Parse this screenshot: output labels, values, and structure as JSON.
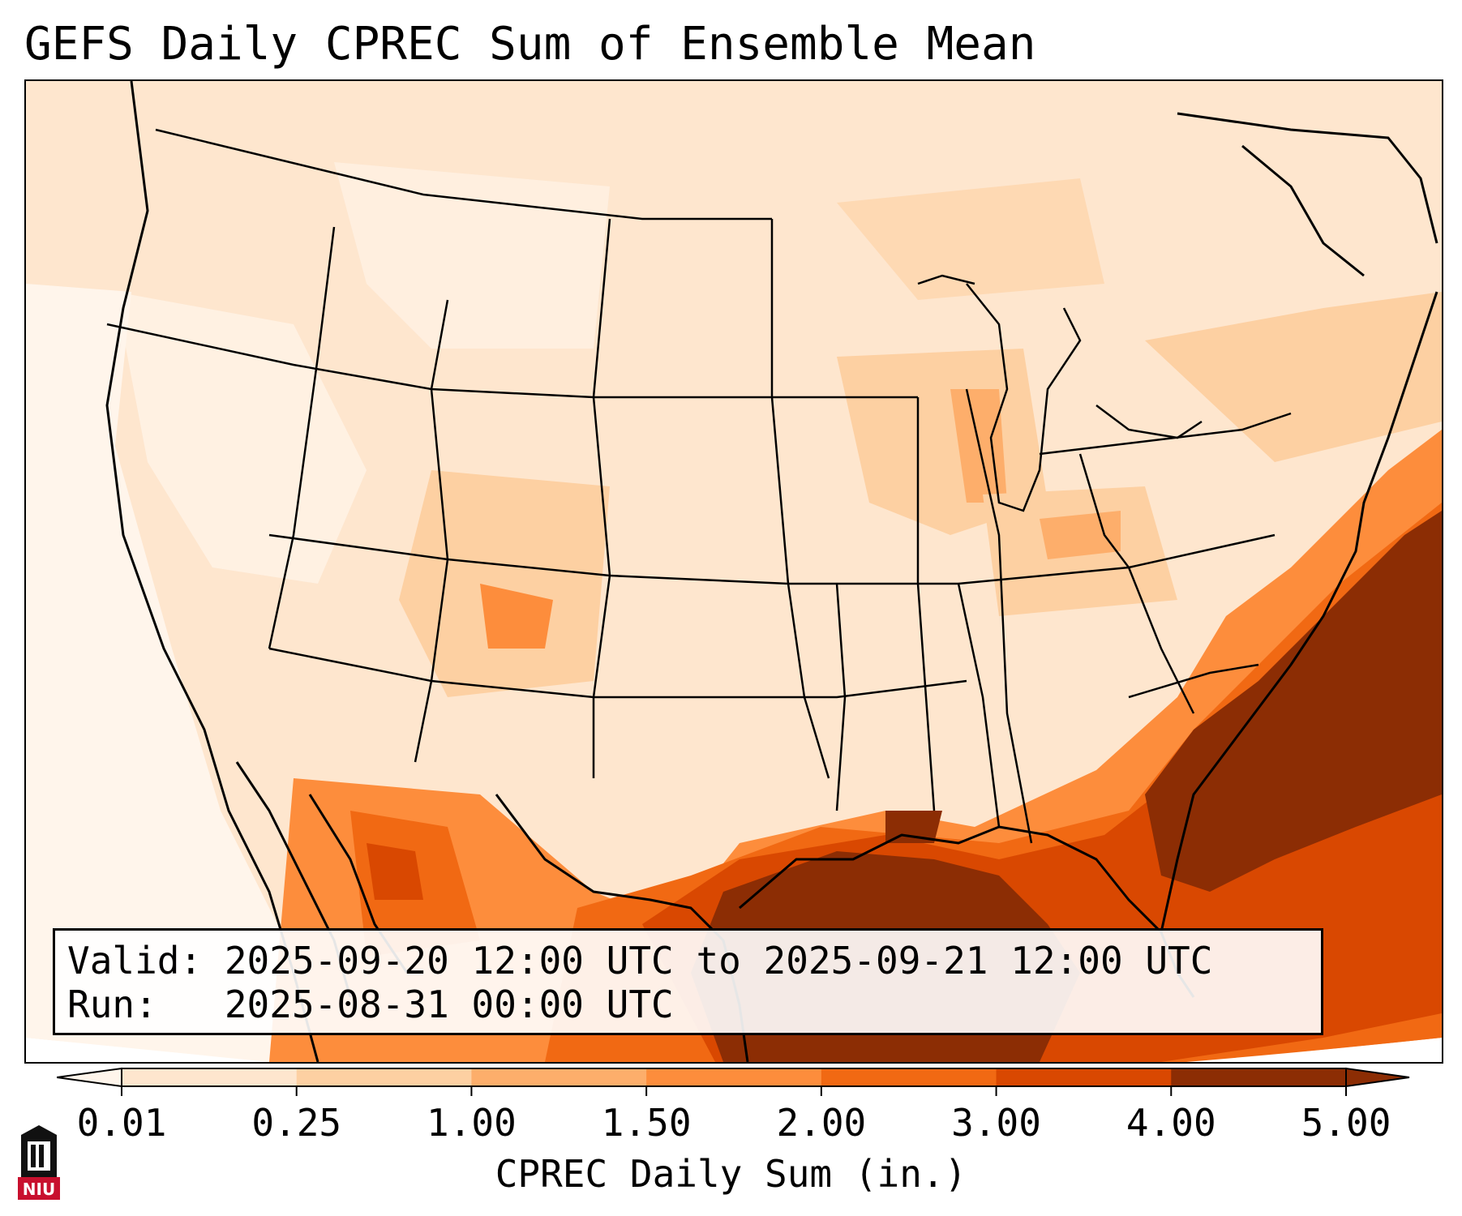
{
  "title": "GEFS Daily CPREC Sum of Ensemble Mean",
  "info": {
    "valid_line": "Valid: 2025-09-20 12:00 UTC to 2025-09-21 12:00 UTC",
    "run_line": "Run:   2025-08-31 00:00 UTC"
  },
  "colorbar": {
    "title": "CPREC Daily Sum (in.)",
    "ticks": [
      "0.01",
      "0.25",
      "1.00",
      "1.50",
      "2.00",
      "3.00",
      "4.00",
      "5.00"
    ],
    "colors": [
      "#fff5eb",
      "#fee6ce",
      "#fdd0a2",
      "#fdae6b",
      "#fd8d3c",
      "#f16913",
      "#d94801",
      "#8c2d04"
    ]
  },
  "logo": {
    "text": "NIU",
    "color": "#c8102e"
  }
}
